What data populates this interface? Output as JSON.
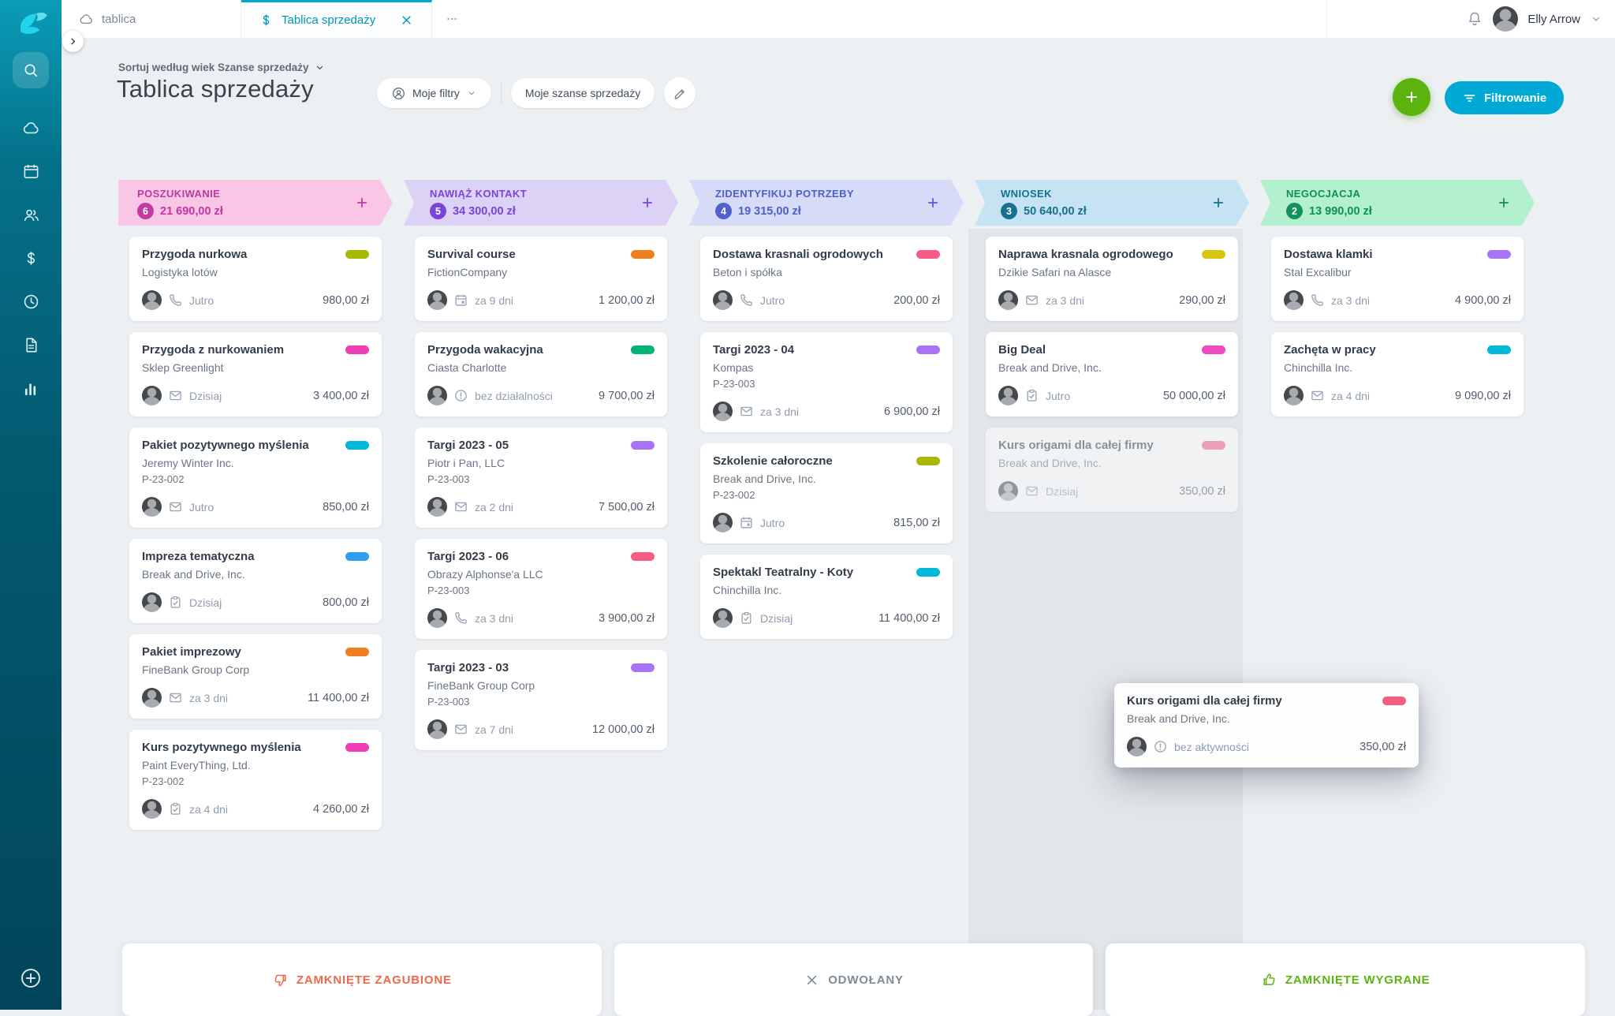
{
  "topbar": {
    "tabs": [
      {
        "label": "tablica",
        "icon": "cloud-icon",
        "active": false
      },
      {
        "label": "Tablica sprzedaży",
        "icon": "dollar-icon",
        "active": true,
        "closable": true
      }
    ],
    "user": {
      "name": "Elly Arrow"
    }
  },
  "header": {
    "sort_label": "Sortuj według wiek Szanse sprzedaży",
    "title": "Tablica sprzedaży",
    "filters_button": "Moje filtry",
    "deals_button": "Moje szanse sprzedaży",
    "filter_button": "Filtrowanie"
  },
  "board": {
    "columns": [
      {
        "name": "POSZUKIWANIE",
        "count": "6",
        "sum": "21 690,00 zł",
        "colors": {
          "bg": "#f9c6e6",
          "fg": "#bb39a0",
          "badge": "#c23aa3"
        },
        "cards": [
          {
            "title": "Przygoda nurkowa",
            "company": "Logistyka lotów",
            "activity": "phone-icon",
            "due": "Jutro",
            "amount": "980,00 zł",
            "tag": "#a7b800"
          },
          {
            "title": "Przygoda z nurkowaniem",
            "company": "Sklep Greenlight",
            "activity": "mail-icon",
            "due": "Dzisiaj",
            "amount": "3 400,00 zł",
            "tag": "#ee3fb5"
          },
          {
            "title": "Pakiet pozytywnego myślenia",
            "company": "Jeremy Winter Inc.",
            "number": "P-23-002",
            "activity": "mail-icon",
            "due": "Jutro",
            "amount": "850,00 zł",
            "tag": "#00b9d8"
          },
          {
            "title": "Impreza tematyczna",
            "company": "Break and Drive, Inc.",
            "activity": "task-icon",
            "due": "Dzisiaj",
            "amount": "800,00 zł",
            "tag": "#2f9ff0"
          },
          {
            "title": "Pakiet imprezowy",
            "company": "FineBank Group Corp",
            "activity": "mail-icon",
            "due": "za 3 dni",
            "amount": "11 400,00 zł",
            "tag": "#f0801f"
          },
          {
            "title": "Kurs pozytywnego myślenia",
            "company": "Paint EveryThing, Ltd.",
            "number": "P-23-002",
            "activity": "task-icon",
            "due": "za 4 dni",
            "amount": "4 260,00 zł",
            "tag": "#ee3fb5"
          }
        ]
      },
      {
        "name": "NAWIĄŻ KONTAKT",
        "count": "5",
        "sum": "34 300,00 zł",
        "colors": {
          "bg": "#dcd2f6",
          "fg": "#7b43d8",
          "badge": "#7b43d8"
        },
        "cards": [
          {
            "title": "Survival course",
            "company": "FictionCompany",
            "activity": "calendar-icon",
            "due": "za 9 dni",
            "amount": "1 200,00 zł",
            "tag": "#f0801f"
          },
          {
            "title": "Przygoda wakacyjna",
            "company": "Ciasta Charlotte",
            "activity": "no-activity-icon",
            "due": "bez działalności",
            "amount": "9 700,00 zł",
            "tag": "#00b377"
          },
          {
            "title": "Targi 2023 - 05",
            "company": "Piotr i Pan, LLC",
            "number": "P-23-003",
            "activity": "mail-icon",
            "due": "za 2 dni",
            "amount": "7 500,00 zł",
            "tag": "#a873f7"
          },
          {
            "title": "Targi 2023 - 06",
            "company": "Obrazy Alphonse'a LLC",
            "number": "P-23-003",
            "activity": "phone-icon",
            "due": "za 3 dni",
            "amount": "3 900,00 zł",
            "tag": "#f75d84"
          },
          {
            "title": "Targi 2023 - 03",
            "company": "FineBank Group Corp",
            "number": "P-23-003",
            "activity": "mail-icon",
            "due": "za 7 dni",
            "amount": "12 000,00 zł",
            "tag": "#a873f7"
          }
        ]
      },
      {
        "name": "ZIDENTYFIKUJ POTRZEBY",
        "count": "4",
        "sum": "19 315,00 zł",
        "colors": {
          "bg": "#d6dbf8",
          "fg": "#4d5fc9",
          "badge": "#5163cb"
        },
        "cards": [
          {
            "title": "Dostawa krasnali ogrodowych",
            "company": "Beton i spółka",
            "activity": "phone-icon",
            "due": "Jutro",
            "amount": "200,00 zł",
            "tag": "#f75d84"
          },
          {
            "title": "Targi 2023 - 04",
            "company": "Kompas",
            "number": "P-23-003",
            "activity": "mail-icon",
            "due": "za 3 dni",
            "amount": "6 900,00 zł",
            "tag": "#a873f7"
          },
          {
            "title": "Szkolenie całoroczne",
            "company": "Break and Drive, Inc.",
            "number": "P-23-002",
            "activity": "calendar-icon",
            "due": "Jutro",
            "amount": "815,00 zł",
            "tag": "#a7b800"
          },
          {
            "title": "Spektakl Teatralny - Koty",
            "company": "Chinchilla Inc.",
            "activity": "task-icon",
            "due": "Dzisiaj",
            "amount": "11 400,00 zł",
            "tag": "#00b9d8"
          }
        ]
      },
      {
        "name": "WNIOSEK",
        "count": "3",
        "sum": "50 640,00 zł",
        "colors": {
          "bg": "#c5e3f2",
          "fg": "#15718d",
          "badge": "#15718d"
        },
        "drop_target": true,
        "cards": [
          {
            "title": "Naprawa krasnala ogrodowego",
            "company": "Dzikie Safari na Alasce",
            "activity": "mail-icon",
            "due": "za 3 dni",
            "amount": "290,00 zł",
            "tag": "#d6c60e"
          },
          {
            "title": "Big Deal",
            "company": "Break and Drive, Inc.",
            "activity": "task-icon",
            "due": "Jutro",
            "amount": "50 000,00 zł",
            "tag": "#f04ac0"
          },
          {
            "title": "Kurs origami dla całej firmy",
            "company": "Break and Drive, Inc.",
            "activity": "mail-icon",
            "due": "Dzisiaj",
            "amount": "350,00 zł",
            "tag": "#f75d84",
            "ghost": true
          }
        ]
      },
      {
        "name": "NEGOCJACJA",
        "count": "2",
        "sum": "13 990,00 zł",
        "colors": {
          "bg": "#b3f0cd",
          "fg": "#0f8f57",
          "badge": "#12925c"
        },
        "cards": [
          {
            "title": "Dostawa klamki",
            "company": "Stal Excalibur",
            "activity": "phone-icon",
            "due": "za 3 dni",
            "amount": "4 900,00 zł",
            "tag": "#a873f7"
          },
          {
            "title": "Zachęta w pracy",
            "company": "Chinchilla Inc.",
            "activity": "mail-icon",
            "due": "za 4 dni",
            "amount": "9 090,00 zł",
            "tag": "#00b9d8"
          }
        ]
      }
    ]
  },
  "drag_card": {
    "title": "Kurs origami dla całej firmy",
    "company": "Break and Drive, Inc.",
    "activity": "no-activity-icon",
    "due": "bez aktywności",
    "amount": "350,00 zł",
    "tag": "#f75d84"
  },
  "close_bar": [
    {
      "label": "ZAMKNIĘTE ZAGUBIONE",
      "icon": "thumbs-down-icon",
      "color": "#f0684a"
    },
    {
      "label": "ODWOŁANY",
      "icon": "x-icon",
      "color": "#7e8b99"
    },
    {
      "label": "ZAMKNIĘTE WYGRANE",
      "icon": "thumbs-up-icon",
      "color": "#5cb50f"
    }
  ],
  "sidebar": {
    "icons": [
      "search-icon",
      "cloud-icon",
      "calendar-icon",
      "contacts-icon",
      "sales-icon",
      "history-icon",
      "documents-icon",
      "reports-icon"
    ],
    "bottom_icon": "plus-circle-icon"
  }
}
